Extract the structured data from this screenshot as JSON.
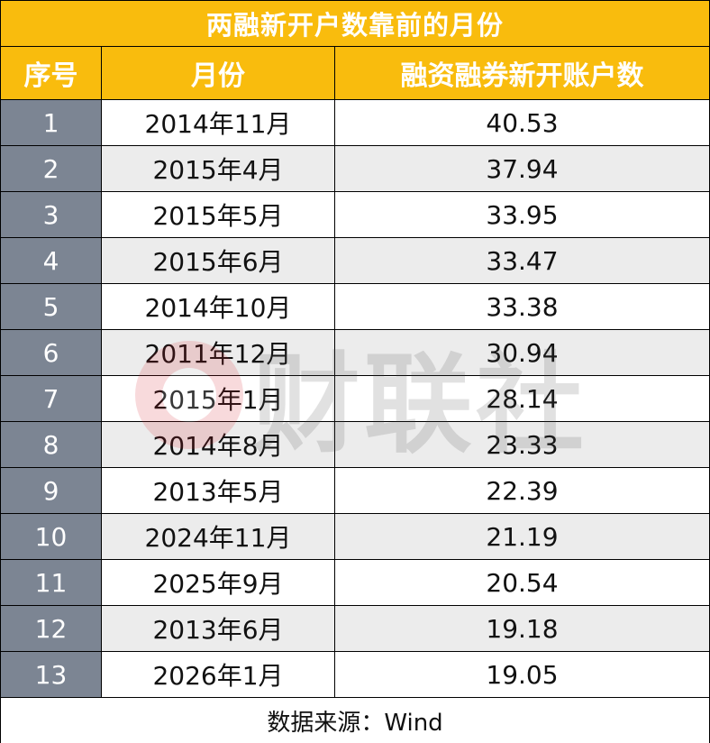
{
  "title": "两融新开户数靠前的月份",
  "columns": {
    "index": "序号",
    "month": "月份",
    "value": "融资融券新开账户数"
  },
  "rows": [
    {
      "index": "1",
      "month": "2014年11月",
      "value": "40.53"
    },
    {
      "index": "2",
      "month": "2015年4月",
      "value": "37.94"
    },
    {
      "index": "3",
      "month": "2015年5月",
      "value": "33.95"
    },
    {
      "index": "4",
      "month": "2015年6月",
      "value": "33.47"
    },
    {
      "index": "5",
      "month": "2014年10月",
      "value": "33.38"
    },
    {
      "index": "6",
      "month": "2011年12月",
      "value": "30.94"
    },
    {
      "index": "7",
      "month": "2015年1月",
      "value": "28.14"
    },
    {
      "index": "8",
      "month": "2014年8月",
      "value": "23.33"
    },
    {
      "index": "9",
      "month": "2013年5月",
      "value": "22.39"
    },
    {
      "index": "10",
      "month": "2024年11月",
      "value": "21.19"
    },
    {
      "index": "11",
      "month": "2025年9月",
      "value": "20.54"
    },
    {
      "index": "12",
      "month": "2013年6月",
      "value": "19.18"
    },
    {
      "index": "13",
      "month": "2026年1月",
      "value": "19.05"
    }
  ],
  "source": "数据来源：Wind",
  "watermark": {
    "text": "财联社",
    "icon": "cls-logo-icon",
    "color": "#d9232e"
  },
  "colors": {
    "header_bg": "#f9bc0d",
    "index_bg": "#7c8593",
    "stripe_bg": "#ececec"
  }
}
